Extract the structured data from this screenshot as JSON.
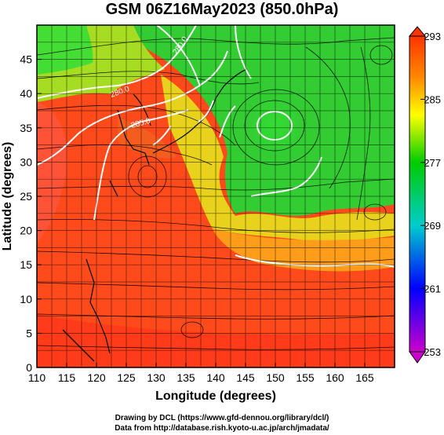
{
  "title": "GSM 06Z16May2023 (850.0hPa)",
  "xlabel": "Longitude (degrees)",
  "ylabel": "Latitude  (degrees)",
  "credits": [
    "Drawing by DCL (https://www.gfd-dennou.org/library/dcl/)",
    "Data from http://database.rish.kyoto-u.ac.jp/arch/jmadata/"
  ],
  "contour_labels": [
    "280.0",
    "280.0",
    "285.0"
  ],
  "chart_data": {
    "type": "heatmap",
    "title": "GSM 06Z16May2023 (850.0hPa)",
    "xlabel": "Longitude (degrees)",
    "ylabel": "Latitude  (degrees)",
    "xlim": [
      110,
      170
    ],
    "ylim": [
      0,
      50
    ],
    "xticks": [
      110,
      115,
      120,
      125,
      130,
      135,
      140,
      145,
      150,
      155,
      160,
      165
    ],
    "yticks": [
      0,
      5,
      10,
      15,
      20,
      25,
      30,
      35,
      40,
      45
    ],
    "colorbar": {
      "range": [
        253,
        293
      ],
      "ticks": [
        253,
        261,
        269,
        277,
        285,
        293
      ],
      "colors": [
        "#cc00cc",
        "#0000ff",
        "#00cccc",
        "#00cc00",
        "#ffff00",
        "#ff8800",
        "#ff3300"
      ]
    },
    "contour_interval": 5,
    "contour_labels": [
      "280.0",
      "280.0",
      "285.0"
    ],
    "features": [
      {
        "label": "cyclone",
        "lon": 149.5,
        "lat": 37.5
      },
      {
        "label": "cyclone",
        "lon": 128.5,
        "lat": 30.0
      }
    ]
  }
}
